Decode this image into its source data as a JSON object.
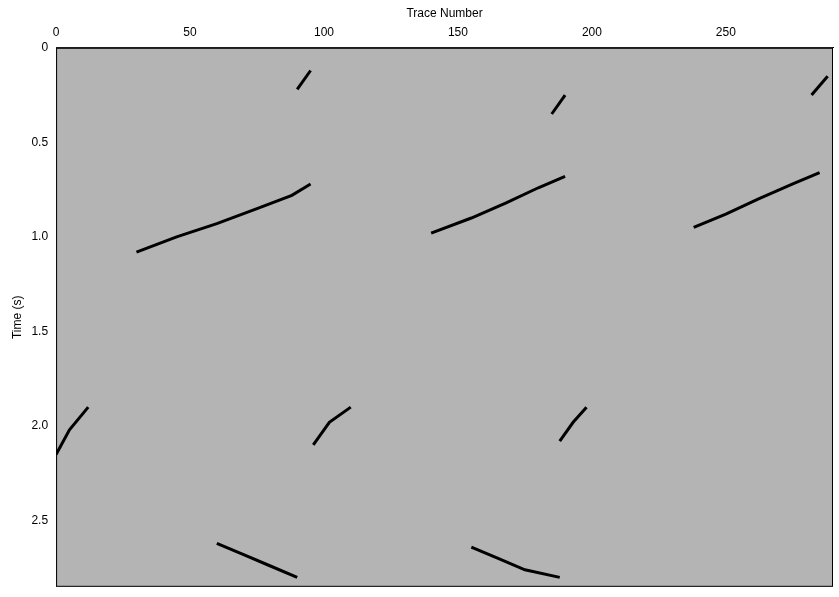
{
  "chart_data": {
    "type": "line",
    "x_label": "Trace Number",
    "y_label": "Time (s)",
    "xlim": [
      0,
      290
    ],
    "xticks": [
      0,
      50,
      100,
      150,
      200,
      250
    ],
    "ylim": [
      0,
      2.85
    ],
    "yticks": [
      0,
      0.5,
      {
        "value": 1,
        "label": "1.0"
      },
      1.5,
      {
        "value": 2,
        "label": "2.0"
      },
      2.5
    ],
    "grid": false,
    "marker": "none",
    "line_style": "solid",
    "series": [
      {
        "color": "#000000",
        "x": [
          95,
          88,
          75,
          60,
          45,
          30
        ],
        "values": [
          0.72,
          0.78,
          0.85,
          0.93,
          1.0,
          1.08
        ]
      },
      {
        "color": "#000000",
        "x": [
          190,
          180,
          168,
          155,
          140
        ],
        "values": [
          0.68,
          0.74,
          0.82,
          0.9,
          0.98
        ]
      },
      {
        "color": "#000000",
        "x": [
          285,
          275,
          262,
          250,
          238
        ],
        "values": [
          0.66,
          0.72,
          0.8,
          0.88,
          0.95
        ]
      },
      {
        "color": "#000000",
        "x": [
          0,
          5,
          12
        ],
        "values": [
          2.15,
          2.02,
          1.9
        ]
      },
      {
        "color": "#000000",
        "x": [
          96,
          102,
          110
        ],
        "values": [
          2.1,
          1.98,
          1.9
        ]
      },
      {
        "color": "#000000",
        "x": [
          188,
          193,
          198
        ],
        "values": [
          2.08,
          1.98,
          1.9
        ]
      },
      {
        "color": "#000000",
        "x": [
          60,
          70,
          80,
          90
        ],
        "values": [
          2.62,
          2.68,
          2.74,
          2.8
        ]
      },
      {
        "color": "#000000",
        "x": [
          155,
          165,
          175,
          188
        ],
        "values": [
          2.64,
          2.7,
          2.76,
          2.8
        ]
      },
      {
        "color": "#000000",
        "x": [
          90,
          95
        ],
        "values": [
          0.22,
          0.12
        ]
      },
      {
        "color": "#000000",
        "x": [
          185,
          190
        ],
        "values": [
          0.35,
          0.25
        ]
      },
      {
        "color": "#000000",
        "x": [
          282,
          288
        ],
        "values": [
          0.25,
          0.15
        ]
      }
    ]
  }
}
